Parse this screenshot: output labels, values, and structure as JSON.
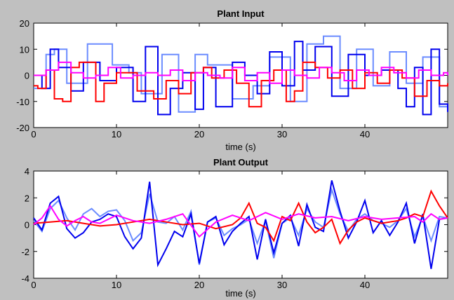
{
  "figure": {
    "background": "#c0c0c0",
    "axes_background": "#ffffff"
  },
  "chart_data": [
    {
      "type": "line",
      "title": "Plant Input",
      "xlabel": "time (s)",
      "ylabel": "",
      "xlim": [
        0,
        50
      ],
      "ylim": [
        -20,
        20
      ],
      "xticks": [
        0,
        10,
        20,
        30,
        40
      ],
      "yticks": [
        -20,
        -10,
        0,
        10,
        20
      ],
      "grid": false,
      "step": true,
      "series": [
        {
          "color": "#6b8cff",
          "x": [
            0,
            1.5,
            2.5,
            4,
            6.5,
            9.5,
            11.5,
            13,
            15.5,
            17.5,
            19.5,
            21,
            24,
            26.5,
            28.5,
            31,
            33,
            35,
            37,
            39,
            41,
            43,
            45,
            47,
            49,
            50
          ],
          "y": [
            -5,
            8,
            10,
            -3,
            12,
            4,
            1,
            -7,
            8,
            -14,
            8,
            4,
            -9,
            -4,
            7,
            -10,
            12,
            15,
            -5,
            10,
            -4,
            9,
            -3,
            7,
            -12,
            -14
          ]
        },
        {
          "color": "#0000ee",
          "x": [
            0,
            1,
            2,
            3,
            4.5,
            6,
            8,
            10,
            12,
            13.5,
            15,
            16.5,
            18,
            19.5,
            20.5,
            22,
            24,
            25.5,
            27,
            28.5,
            30,
            31.5,
            32.5,
            34,
            36,
            38,
            40,
            42,
            44,
            45,
            46,
            47,
            48,
            49,
            50
          ],
          "y": [
            0,
            -5,
            10,
            3,
            -6,
            5,
            -2,
            3,
            -10,
            11,
            -15,
            -5,
            1,
            -13,
            3,
            -12,
            5,
            0,
            -7,
            9,
            -4,
            13,
            2,
            11,
            -8,
            8,
            0,
            2,
            -5,
            -12,
            3,
            -15,
            10,
            -11,
            -14
          ]
        },
        {
          "color": "#ff0000",
          "x": [
            0,
            0.5,
            1.5,
            2.5,
            3.5,
            4.5,
            5.5,
            7.5,
            8.5,
            10,
            12.5,
            14.5,
            16,
            17.5,
            19,
            20.5,
            21.5,
            23,
            24.5,
            26,
            27.5,
            29,
            30.5,
            31.5,
            32.5,
            34,
            35.5,
            37,
            38.5,
            40,
            41.5,
            43,
            44.5,
            46,
            47.5,
            49,
            50
          ],
          "y": [
            -4,
            -5,
            2,
            -9,
            -10,
            3,
            5,
            -10,
            -3,
            1,
            -6,
            -9,
            -2,
            -7,
            1,
            3,
            -1,
            2,
            -3,
            -12,
            -2,
            2,
            -10,
            -6,
            5,
            3,
            -1,
            2,
            -5,
            1,
            -3,
            2,
            -1,
            -8,
            -2,
            -4,
            -3
          ]
        },
        {
          "color": "#ff00ff",
          "x": [
            0,
            1.5,
            3,
            4.5,
            6,
            7.5,
            9,
            10.5,
            12,
            13.5,
            15,
            16.5,
            18,
            19.5,
            21,
            22.5,
            24,
            25.5,
            27,
            28.5,
            30,
            31.5,
            33,
            34.5,
            36,
            37.5,
            39,
            40.5,
            42,
            43.5,
            45,
            46.5,
            48,
            49.5,
            50
          ],
          "y": [
            0,
            2,
            5,
            1,
            -1,
            0,
            3,
            -1,
            0,
            1,
            0,
            2,
            -2,
            1,
            0,
            -1,
            3,
            -2,
            1,
            -3,
            2,
            0,
            -1,
            3,
            1,
            -2,
            2,
            0,
            3,
            1,
            -1,
            2,
            0,
            1,
            0
          ]
        }
      ]
    },
    {
      "type": "line",
      "title": "Plant Output",
      "xlabel": "time (s)",
      "ylabel": "",
      "xlim": [
        0,
        50
      ],
      "ylim": [
        -4,
        4
      ],
      "xticks": [
        0,
        10,
        20,
        30,
        40
      ],
      "yticks": [
        -4,
        -2,
        0,
        2,
        4
      ],
      "grid": false,
      "step": false,
      "series": [
        {
          "color": "#6b8cff",
          "x": [
            0,
            1,
            2,
            3,
            4,
            5,
            6,
            7,
            8,
            9,
            10,
            11,
            12,
            13,
            14,
            15,
            16,
            17,
            18,
            19,
            20,
            21,
            22,
            23,
            24,
            25,
            26,
            27,
            28,
            29,
            30,
            31,
            32,
            33,
            34,
            35,
            36,
            37,
            38,
            39,
            40,
            41,
            42,
            43,
            44,
            45,
            46,
            47,
            48,
            49,
            50
          ],
          "y": [
            0.3,
            -0.5,
            1.2,
            1.8,
            0.5,
            -0.4,
            0.8,
            1.2,
            0.6,
            1.0,
            1.1,
            0.3,
            -1.2,
            -0.6,
            2.3,
            0.2,
            0.1,
            0.6,
            -0.4,
            1.0,
            -3.0,
            0.2,
            0.5,
            -0.8,
            -0.3,
            0.0,
            0.4,
            -1.4,
            0.3,
            -2.5,
            0.1,
            0.5,
            -0.8,
            1.2,
            0.2,
            -0.2,
            2.6,
            0.8,
            -0.5,
            0.4,
            0.8,
            0.3,
            0.1,
            -0.2,
            0.3,
            1.2,
            -0.9,
            0.6,
            -1.2,
            0.6,
            0.5
          ]
        },
        {
          "color": "#0000ee",
          "x": [
            0,
            1,
            2,
            3,
            4,
            5,
            6,
            7,
            8,
            9,
            10,
            11,
            12,
            13,
            14,
            15,
            16,
            17,
            18,
            19,
            20,
            21,
            22,
            23,
            24,
            25,
            26,
            27,
            28,
            29,
            30,
            31,
            32,
            33,
            34,
            35,
            36,
            37,
            38,
            39,
            40,
            41,
            42,
            43,
            44,
            45,
            46,
            47,
            48,
            49,
            50
          ],
          "y": [
            0.5,
            -0.4,
            1.6,
            2.1,
            -0.3,
            -1.0,
            -0.6,
            0.2,
            0.4,
            0.8,
            0.6,
            -0.9,
            -1.8,
            -1.0,
            3.2,
            -3.0,
            -1.8,
            -0.5,
            -0.9,
            0.8,
            -2.9,
            0.2,
            0.6,
            -1.5,
            -0.5,
            0.1,
            0.6,
            -2.6,
            0.4,
            -2.1,
            0.1,
            0.7,
            -1.6,
            1.5,
            -0.2,
            -0.5,
            3.3,
            1.0,
            -1.0,
            0.2,
            1.8,
            -0.6,
            0.3,
            -0.8,
            0.2,
            1.6,
            -1.4,
            0.8,
            -3.3,
            0.4,
            0.5
          ]
        },
        {
          "color": "#ff0000",
          "x": [
            0,
            2,
            4,
            6,
            8,
            10,
            12,
            14,
            16,
            18,
            20,
            22,
            24,
            25,
            26,
            27,
            28,
            29,
            30,
            31,
            32,
            33,
            34,
            35,
            36,
            37,
            38,
            39,
            40,
            42,
            44,
            45,
            46,
            47,
            48,
            49,
            50
          ],
          "y": [
            0.1,
            0.2,
            0.3,
            0.1,
            -0.1,
            0.0,
            0.2,
            0.4,
            0.2,
            0.0,
            0.1,
            -0.3,
            0.0,
            0.5,
            1.6,
            0.1,
            -0.2,
            -1.2,
            0.6,
            0.3,
            1.6,
            0.2,
            -0.6,
            -0.2,
            0.4,
            -1.4,
            -0.4,
            0.2,
            0.5,
            0.1,
            0.3,
            0.5,
            0.8,
            0.6,
            2.5,
            1.4,
            0.5
          ]
        },
        {
          "color": "#ff00ff",
          "x": [
            0,
            1,
            2,
            3,
            4,
            5,
            6,
            7,
            8,
            9,
            10,
            12,
            14,
            16,
            18,
            20,
            22,
            24,
            26,
            28,
            30,
            32,
            34,
            36,
            38,
            40,
            42,
            44,
            46,
            47,
            48,
            49,
            50
          ],
          "y": [
            0.0,
            0.5,
            1.4,
            0.4,
            -0.1,
            0.3,
            0.6,
            0.2,
            0.1,
            0.4,
            0.7,
            0.3,
            0.1,
            0.4,
            0.8,
            -0.9,
            0.2,
            0.7,
            0.3,
            0.9,
            0.4,
            0.8,
            0.5,
            0.6,
            0.3,
            0.6,
            0.4,
            0.5,
            0.6,
            0.2,
            0.8,
            0.4,
            0.5
          ]
        }
      ]
    }
  ]
}
